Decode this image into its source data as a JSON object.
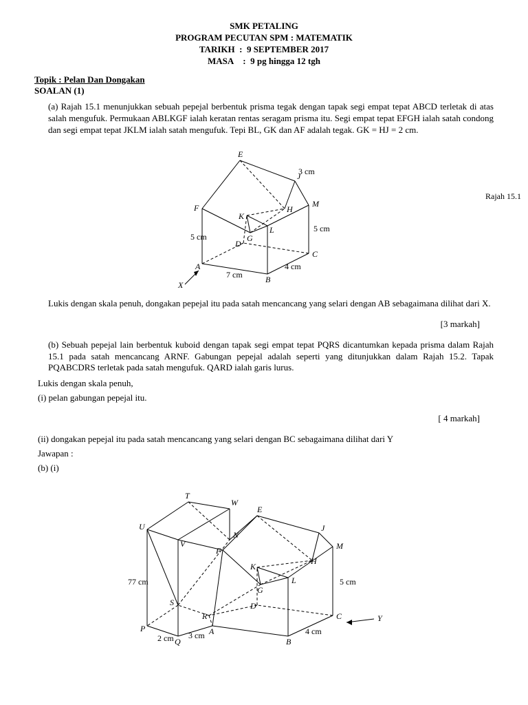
{
  "header": {
    "school": "SMK PETALING",
    "program": "PROGRAM PECUTAN SPM : MATEMATIK",
    "date_label": "TARIKH",
    "date_value": "9 SEPTEMBER 2017",
    "time_label": "MASA",
    "time_value": "9 pg hingga 12 tgh"
  },
  "topic_label": "Topik : Pelan Dan Dongakan",
  "soalan_label": "SOALAN (1)",
  "part_a": {
    "text": "(a) Rajah 15.1 menunjukkan sebuah pepejal berbentuk prisma tegak dengan tapak segi empat tepat ABCD terletak di atas salah mengufuk. Permukaan ABLKGF ialah keratan rentas seragam prisma itu. Segi empat tepat EFGH ialah satah condong dan segi empat tepat JKLM ialah satah mengufuk. Tepi BL, GK dan AF adalah tegak. GK = HJ = 2 cm.",
    "instruction": "Lukis dengan skala penuh, dongakan pepejal itu pada satah mencancang yang selari dengan AB sebagaimana dilihat dari X.",
    "marks": "[3 markah]"
  },
  "part_b": {
    "text": "(b) Sebuah pepejal lain berbentuk kuboid dengan tapak segi empat tepat PQRS dicantumkan kepada prisma dalam Rajah 15.1 pada satah mencancang ARNF. Gabungan pepejal adalah seperti yang ditunjukkan dalam Rajah 15.2. Tapak PQABCDRS terletak pada satah mengufuk. QARD ialah garis lurus.",
    "instruction1": "Lukis dengan skala penuh,",
    "instruction2": "(i) pelan gabungan pepejal itu.",
    "marks1": "[ 4 markah]",
    "instruction3": "(ii) dongakan pepejal itu pada satah mencancang yang selari dengan BC sebagaimana dilihat dari Y",
    "answer_label": "Jawapan :",
    "answer_part": "(b) (i)"
  },
  "diagram1": {
    "label": "Rajah 15.1",
    "vertices": {
      "A": "A",
      "B": "B",
      "C": "C",
      "D": "D",
      "E": "E",
      "F": "F",
      "G": "G",
      "H": "H",
      "J": "J",
      "K": "K",
      "L": "L",
      "M": "M",
      "X": "X"
    },
    "dims": {
      "d3cm": "3 cm",
      "d5cm": "5 cm",
      "d5cm2": "5 cm",
      "d7cm": "7 cm",
      "d4cm": "4 cm"
    }
  },
  "diagram2": {
    "vertices": {
      "A": "A",
      "B": "B",
      "C": "C",
      "D": "D",
      "E": "E",
      "F": "F",
      "G": "G",
      "H": "H",
      "J": "J",
      "K": "K",
      "L": "L",
      "M": "M",
      "N": "N",
      "P": "P",
      "Q": "Q",
      "R": "R",
      "S": "S",
      "T": "T",
      "U": "U",
      "V": "V",
      "W": "W",
      "Y": "Y"
    },
    "dims": {
      "d77cm": "77 cm",
      "d2cm": "2 cm",
      "d3cm": "3 cm",
      "d4cm": "4 cm",
      "d5cm": "5 cm"
    }
  },
  "style": {
    "stroke": "#000000",
    "dash": "4,3",
    "font": "italic 13px Times New Roman",
    "dimfont": "12px Times New Roman"
  }
}
